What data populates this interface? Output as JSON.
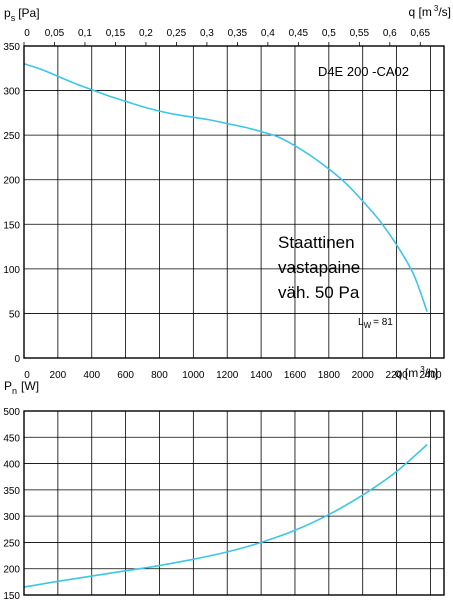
{
  "chart_data": [
    {
      "type": "line",
      "title": "D4E 200 -CA02",
      "ylabel_main": "p",
      "ylabel_sub": "s",
      "ylabel_unit": "[Pa]",
      "top_axis_label": "q [m",
      "top_axis_sup": "3",
      "top_axis_unit": "/s]",
      "top_ticks": [
        "0",
        "0,05",
        "0,1",
        "0,15",
        "0,2",
        "0,25",
        "0,3",
        "0,35",
        "0,4",
        "0,45",
        "0,5",
        "0,55",
        "0,6",
        "0,65"
      ],
      "top_tick_values": [
        0,
        0.05,
        0.1,
        0.15,
        0.2,
        0.25,
        0.3,
        0.35,
        0.4,
        0.45,
        0.5,
        0.55,
        0.6,
        0.65
      ],
      "bottom_ticks": [
        "0",
        "200",
        "400",
        "600",
        "800",
        "1000",
        "1200",
        "1400",
        "1600",
        "1800",
        "2000",
        "2200",
        "2400"
      ],
      "bottom_tick_values": [
        0,
        200,
        400,
        600,
        800,
        1000,
        1200,
        1400,
        1600,
        1800,
        2000,
        2200,
        2400
      ],
      "bottom_axis_label": "q [m",
      "bottom_axis_sup": "3",
      "bottom_axis_unit": "/h]",
      "yticks": [
        "0",
        "50",
        "100",
        "150",
        "200",
        "250",
        "300",
        "350"
      ],
      "ytick_values": [
        0,
        50,
        100,
        150,
        200,
        250,
        300,
        350
      ],
      "xlim": [
        0,
        2480
      ],
      "ylim": [
        0,
        350
      ],
      "annotation_lines": [
        "Staattinen",
        "vastapaine",
        "väh. 50 Pa"
      ],
      "lw_label": "L",
      "lw_sub": "W",
      "lw_value": "= 81",
      "curve_color": "#3cc6e8",
      "series": [
        {
          "x": [
            0,
            100,
            200,
            300,
            400,
            500,
            600,
            700,
            800,
            900,
            1000,
            1100,
            1200,
            1300,
            1400,
            1500,
            1600,
            1700,
            1800,
            1900,
            2000,
            2100,
            2200,
            2300,
            2380
          ],
          "y": [
            330,
            324,
            316,
            308,
            301,
            294,
            288,
            282,
            277,
            273,
            270,
            267,
            263,
            259,
            254,
            248,
            238,
            226,
            212,
            196,
            176,
            154,
            127,
            94,
            52
          ]
        }
      ]
    },
    {
      "type": "line",
      "ylabel_main": "P",
      "ylabel_sub": "n",
      "ylabel_unit": "[W]",
      "yticks": [
        "150",
        "200",
        "250",
        "300",
        "350",
        "400",
        "450",
        "500"
      ],
      "ytick_values": [
        150,
        200,
        250,
        300,
        350,
        400,
        450,
        500
      ],
      "xlim": [
        0,
        2480
      ],
      "ylim": [
        150,
        500
      ],
      "curve_color": "#3cc6e8",
      "series": [
        {
          "x": [
            0,
            200,
            400,
            600,
            800,
            1000,
            1200,
            1400,
            1600,
            1800,
            2000,
            2200,
            2380
          ],
          "y": [
            165,
            176,
            186,
            196,
            206,
            218,
            232,
            250,
            273,
            303,
            340,
            385,
            436
          ]
        }
      ]
    }
  ]
}
